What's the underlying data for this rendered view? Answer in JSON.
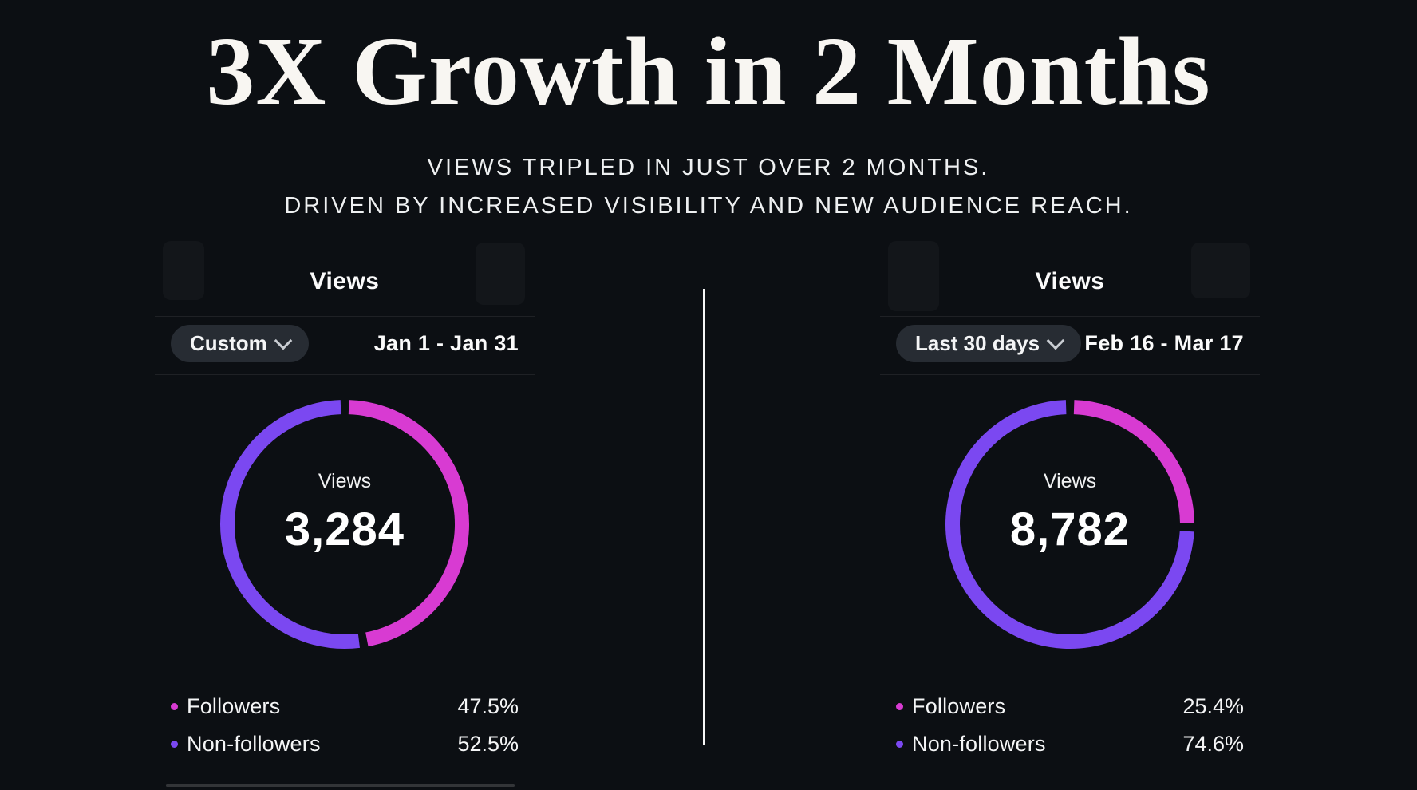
{
  "header": {
    "title": "3X Growth in 2 Months",
    "subtitle_line1": "VIEWS TRIPLED IN JUST OVER 2 MONTHS.",
    "subtitle_line2": "DRIVEN BY INCREASED VISIBILITY AND NEW AUDIENCE REACH."
  },
  "panels": [
    {
      "title": "Views",
      "range_button_label": "Custom",
      "date_range": "Jan 1 - Jan 31",
      "center_label": "Views",
      "center_value": "3,284",
      "legend": [
        {
          "label": "Followers",
          "value": "47.5%"
        },
        {
          "label": "Non-followers",
          "value": "52.5%"
        }
      ]
    },
    {
      "title": "Views",
      "range_button_label": "Last 30 days",
      "date_range": "Feb 16 - Mar 17",
      "center_label": "Views",
      "center_value": "8,782",
      "legend": [
        {
          "label": "Followers",
          "value": "25.4%"
        },
        {
          "label": "Non-followers",
          "value": "74.6%"
        }
      ]
    }
  ],
  "chart_data": [
    {
      "type": "pie",
      "variant": "donut",
      "title": "Views",
      "period": "Custom",
      "date_range": "Jan 1 - Jan 31",
      "total_views": 3284,
      "series": [
        {
          "name": "Followers",
          "percent": 47.5,
          "color": "#d83bd2"
        },
        {
          "name": "Non-followers",
          "percent": 52.5,
          "color": "#7b48f1"
        }
      ],
      "legend_position": "bottom"
    },
    {
      "type": "pie",
      "variant": "donut",
      "title": "Views",
      "period": "Last 30 days",
      "date_range": "Feb 16 - Mar 17",
      "total_views": 8782,
      "series": [
        {
          "name": "Followers",
          "percent": 25.4,
          "color": "#d83bd2"
        },
        {
          "name": "Non-followers",
          "percent": 74.6,
          "color": "#7b48f1"
        }
      ],
      "legend_position": "bottom"
    }
  ]
}
